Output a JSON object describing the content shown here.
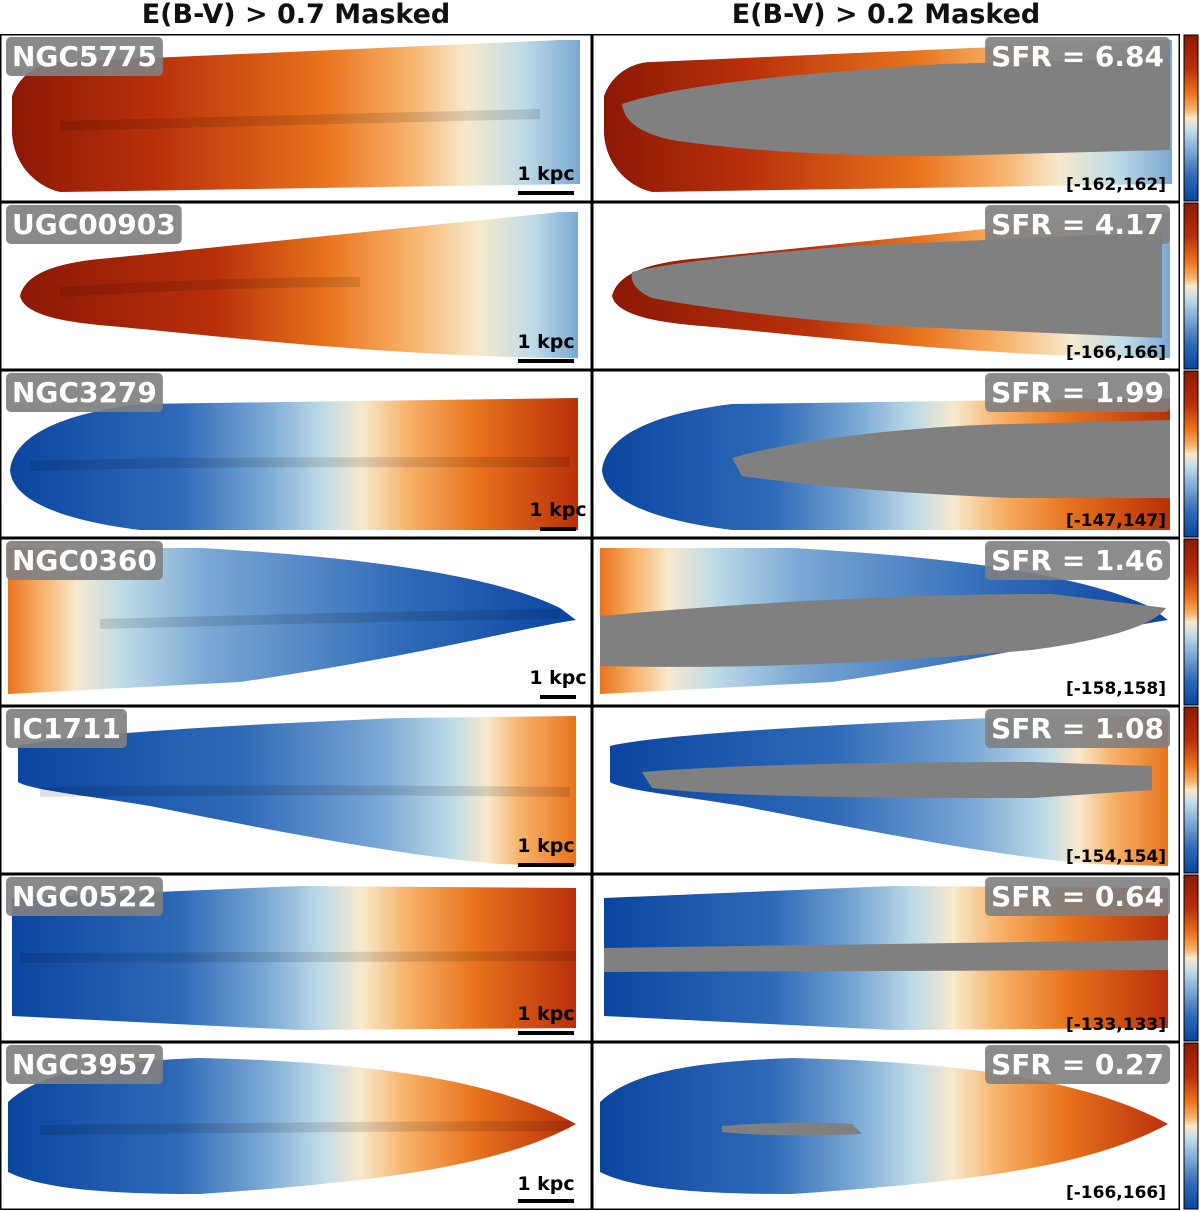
{
  "columns": {
    "left_title": "E(B-V) > 0.7 Masked",
    "right_title": "E(B-V) > 0.2 Masked"
  },
  "scale_bar_label": "1 kpc",
  "colors": {
    "mask_gray": "#808080",
    "label_box": "#808080",
    "blue_deep": "#0a45a0",
    "blue": "#2f6ab8",
    "blue_light": "#7aa8d4",
    "cyan_pale": "#bfdbe8",
    "cream": "#f7e9cc",
    "orange_light": "#f7b26a",
    "orange": "#e8731c",
    "red": "#b8300a",
    "red_deep": "#8c1804"
  },
  "panels": [
    {
      "galaxy": "NGC5775",
      "sfr": "SFR = 6.84",
      "range": "[-162,162]",
      "left_field": "red-to-blue",
      "right_field": "red-to-blue"
    },
    {
      "galaxy": "UGC00903",
      "sfr": "SFR = 4.17",
      "range": "[-166,166]",
      "left_field": "red-to-cream",
      "right_field": "red-to-cream"
    },
    {
      "galaxy": "NGC3279",
      "sfr": "SFR = 1.99",
      "range": "[-147,147]",
      "left_field": "blue-to-red",
      "right_field": "blue-to-red"
    },
    {
      "galaxy": "NGC0360",
      "sfr": "SFR = 1.46",
      "range": "[-158,158]",
      "left_field": "orange-to-blue",
      "right_field": "orange-to-blue"
    },
    {
      "galaxy": "IC1711",
      "sfr": "SFR = 1.08",
      "range": "[-154,154]",
      "left_field": "blue-to-orange",
      "right_field": "blue-to-orange"
    },
    {
      "galaxy": "NGC0522",
      "sfr": "SFR = 0.64",
      "range": "[-133,133]",
      "left_field": "blue-to-red",
      "right_field": "blue-to-red"
    },
    {
      "galaxy": "NGC3957",
      "sfr": "SFR = 0.27",
      "range": "[-166,166]",
      "left_field": "blue-to-red",
      "right_field": "blue-to-red"
    }
  ]
}
